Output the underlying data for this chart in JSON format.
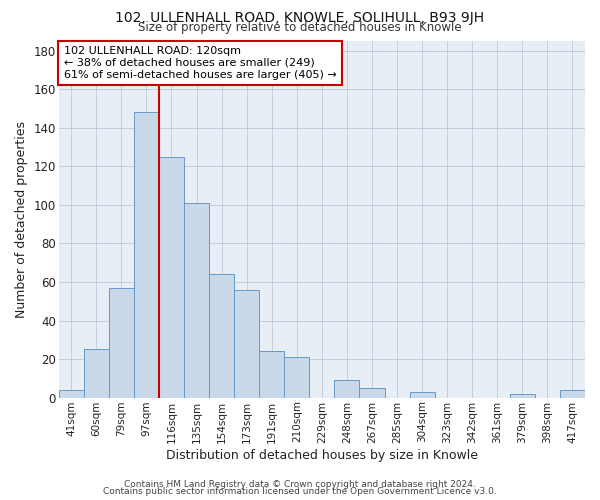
{
  "title": "102, ULLENHALL ROAD, KNOWLE, SOLIHULL, B93 9JH",
  "subtitle": "Size of property relative to detached houses in Knowle",
  "xlabel": "Distribution of detached houses by size in Knowle",
  "ylabel": "Number of detached properties",
  "bar_labels": [
    "41sqm",
    "60sqm",
    "79sqm",
    "97sqm",
    "116sqm",
    "135sqm",
    "154sqm",
    "173sqm",
    "191sqm",
    "210sqm",
    "229sqm",
    "248sqm",
    "267sqm",
    "285sqm",
    "304sqm",
    "323sqm",
    "342sqm",
    "361sqm",
    "379sqm",
    "398sqm",
    "417sqm"
  ],
  "bar_heights": [
    4,
    25,
    57,
    148,
    125,
    101,
    64,
    56,
    24,
    21,
    0,
    9,
    5,
    0,
    3,
    0,
    0,
    0,
    2,
    0,
    4
  ],
  "bar_color": "#c9d9ea",
  "bar_edge_color": "#6699cc",
  "property_line_index": 4,
  "property_line_color": "#cc0000",
  "annotation_line1": "102 ULLENHALL ROAD: 120sqm",
  "annotation_line2": "← 38% of detached houses are smaller (249)",
  "annotation_line3": "61% of semi-detached houses are larger (405) →",
  "annotation_fontsize": 8.0,
  "annotation_box_color": "#ffffff",
  "annotation_box_edge": "#cc0000",
  "ylim": [
    0,
    185
  ],
  "yticks": [
    0,
    20,
    40,
    60,
    80,
    100,
    120,
    140,
    160,
    180
  ],
  "footer1": "Contains HM Land Registry data © Crown copyright and database right 2024.",
  "footer2": "Contains public sector information licensed under the Open Government Licence v3.0.",
  "bg_color": "#ffffff",
  "plot_bg_color": "#e8eef5",
  "grid_color": "#c0c8d8"
}
